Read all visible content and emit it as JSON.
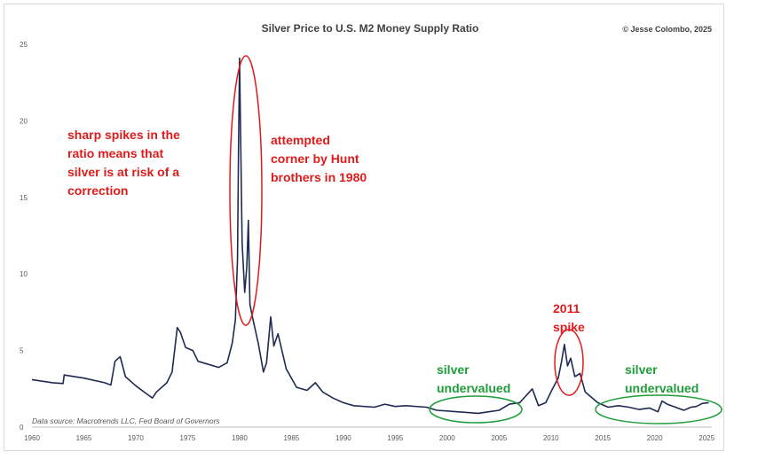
{
  "chart_data": {
    "type": "line",
    "title": "Silver Price to U.S. M2 Money Supply Ratio",
    "credit": "© Jesse Colombo, 2025",
    "source": "Data source: Macrotrends LLC, Fed Board of Governors",
    "xlabel": "",
    "ylabel": "",
    "xlim": [
      1960,
      2025.5
    ],
    "ylim": [
      0,
      25
    ],
    "x_ticks": [
      1960,
      1965,
      1970,
      1975,
      1980,
      1985,
      1990,
      1995,
      2000,
      2005,
      2010,
      2015,
      2020,
      2025
    ],
    "y_ticks": [
      0,
      5,
      10,
      15,
      20,
      25
    ],
    "grid": false,
    "series": [
      {
        "color": "#1f2a52",
        "x": [
          1960,
          1962,
          1963,
          1963.1,
          1965,
          1967,
          1967.6,
          1968,
          1968.5,
          1969,
          1970,
          1971,
          1971.6,
          1972,
          1973,
          1973.5,
          1974,
          1974.3,
          1974.8,
          1975.5,
          1976,
          1977,
          1978,
          1978.8,
          1979.3,
          1979.6,
          1979.8,
          1979.9,
          1980.0,
          1980.1,
          1980.25,
          1980.5,
          1980.7,
          1980.85,
          1981.0,
          1981.3,
          1981.8,
          1982.3,
          1982.6,
          1983.0,
          1983.3,
          1983.7,
          1984.5,
          1985.5,
          1986.5,
          1987.3,
          1988,
          1989,
          1990,
          1991,
          1993,
          1994,
          1995,
          1996,
          1998,
          1999,
          2001,
          2003,
          2004,
          2005,
          2006,
          2007,
          2008.2,
          2008.8,
          2009.5,
          2010,
          2010.7,
          2011.0,
          2011.3,
          2011.6,
          2011.9,
          2012.3,
          2012.8,
          2013.3,
          2013.8,
          2014.5,
          2015.5,
          2016.5,
          2017.5,
          2018.5,
          2019.5,
          2020.3,
          2020.7,
          2021.2,
          2022,
          2022.8,
          2023.5,
          2024,
          2024.6,
          2025.2
        ],
        "values": [
          3.1,
          2.9,
          2.85,
          3.4,
          3.2,
          2.9,
          2.75,
          4.3,
          4.6,
          3.3,
          2.7,
          2.2,
          1.9,
          2.3,
          2.9,
          3.6,
          6.5,
          6.2,
          5.2,
          5.0,
          4.3,
          4.1,
          3.9,
          4.2,
          5.5,
          7.0,
          11.0,
          18.0,
          24.1,
          19.0,
          12.0,
          8.8,
          10.5,
          13.5,
          8.0,
          7.0,
          5.5,
          3.6,
          4.2,
          7.2,
          5.3,
          6.1,
          3.8,
          2.6,
          2.4,
          2.9,
          2.3,
          1.9,
          1.6,
          1.4,
          1.3,
          1.5,
          1.35,
          1.4,
          1.3,
          1.1,
          1.0,
          0.9,
          1.0,
          1.1,
          1.5,
          1.6,
          2.5,
          1.4,
          1.6,
          2.3,
          3.2,
          4.2,
          5.4,
          4.0,
          4.5,
          3.3,
          3.5,
          2.3,
          2.0,
          1.6,
          1.3,
          1.4,
          1.3,
          1.15,
          1.25,
          1.0,
          1.7,
          1.5,
          1.3,
          1.1,
          1.3,
          1.35,
          1.55,
          1.6
        ]
      }
    ],
    "annotations": {
      "spikes": [
        "sharp spikes in the",
        "ratio means that",
        "silver is at risk of a",
        "correction"
      ],
      "hunt": [
        "attempted",
        "corner by Hunt",
        "brothers in 1980"
      ],
      "spike2011": [
        "2011",
        "spike"
      ],
      "under1": [
        "silver",
        "undervalued"
      ],
      "under2": [
        "silver",
        "undervalued"
      ]
    },
    "colors": {
      "line": "#1f2a52",
      "red": "#e01b1b",
      "green": "#1f9d3a"
    }
  }
}
